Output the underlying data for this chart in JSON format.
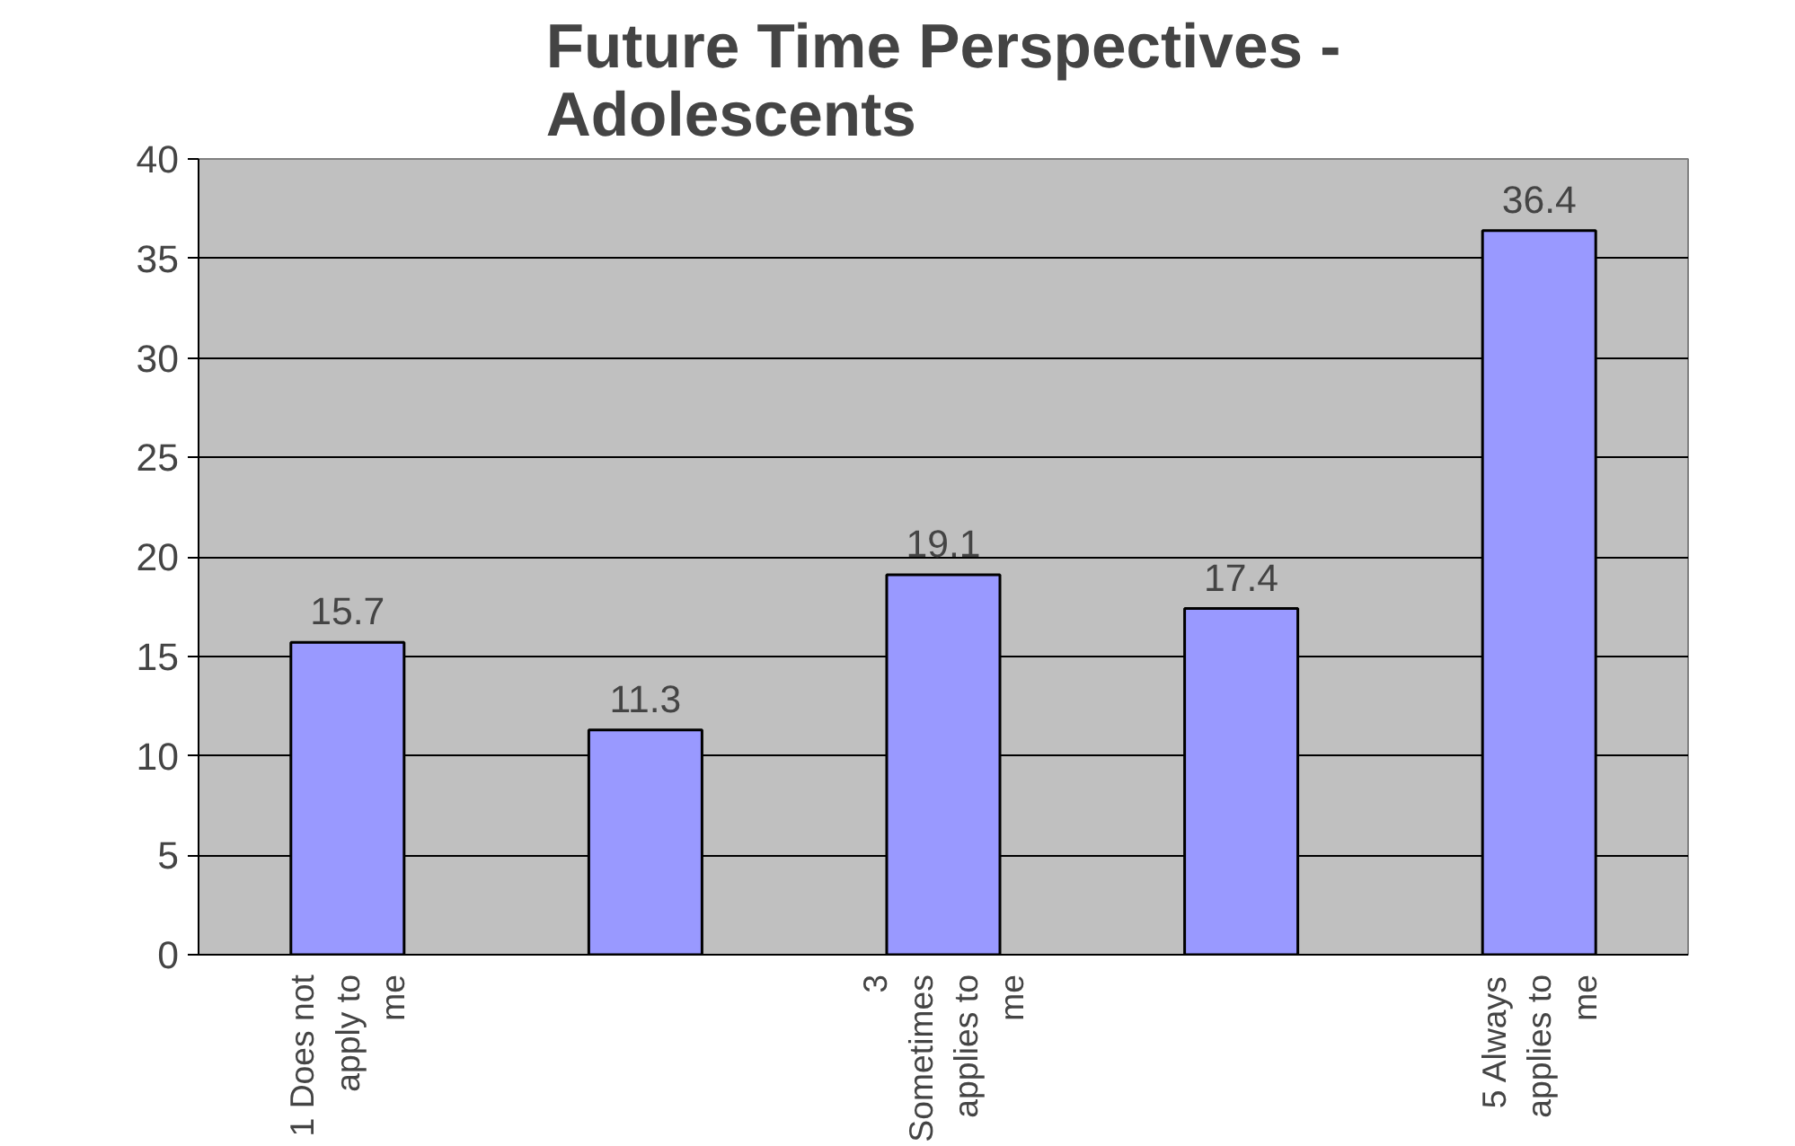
{
  "chart_data": {
    "type": "bar",
    "title": "Future Time Perspectives - Adolescents",
    "categories": [
      "1 Does not apply to me",
      null,
      "3 Sometimes applies to me",
      null,
      "5 Always applies to me"
    ],
    "values": [
      15.7,
      11.3,
      19.1,
      17.4,
      36.4
    ],
    "color": "#9999ff",
    "ylim": [
      0,
      40
    ],
    "yticks": [
      0,
      5,
      10,
      15,
      20,
      25,
      30,
      35,
      40
    ],
    "grid": "y",
    "data_labels": true
  }
}
